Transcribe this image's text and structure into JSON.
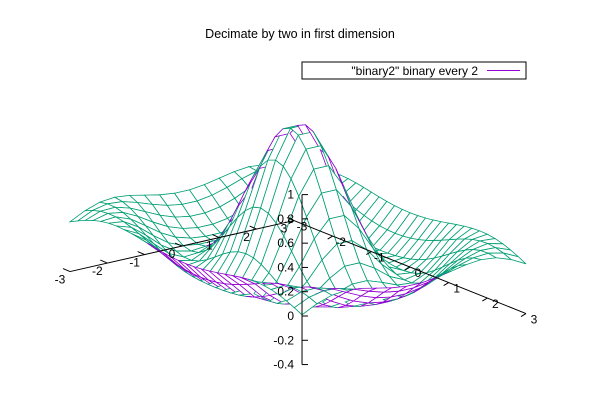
{
  "chart_data": {
    "type": "surface3d",
    "title": "Decimate by two in first dimension",
    "xlabel": "",
    "ylabel": "",
    "zlabel": "",
    "xlim": [
      -3,
      3
    ],
    "ylim": [
      -3,
      3
    ],
    "zlim": [
      -0.4,
      1
    ],
    "xticks": [
      "-3",
      "-2",
      "-1",
      "0",
      "1",
      "2",
      "3"
    ],
    "yticks": [
      "-3",
      "-2",
      "-1",
      "0",
      "1",
      "2",
      "3"
    ],
    "zticks": [
      "-0.4",
      "-0.2",
      "0",
      "0.2",
      "0.4",
      "0.6",
      "0.8",
      "1"
    ],
    "series": [
      {
        "name": "\"binary2\" binary every 2",
        "function": "sin(r)/r",
        "top_color": "#009e73",
        "bottom_color": "#9400d3"
      }
    ],
    "legend_position": "top-right",
    "grid": false
  }
}
